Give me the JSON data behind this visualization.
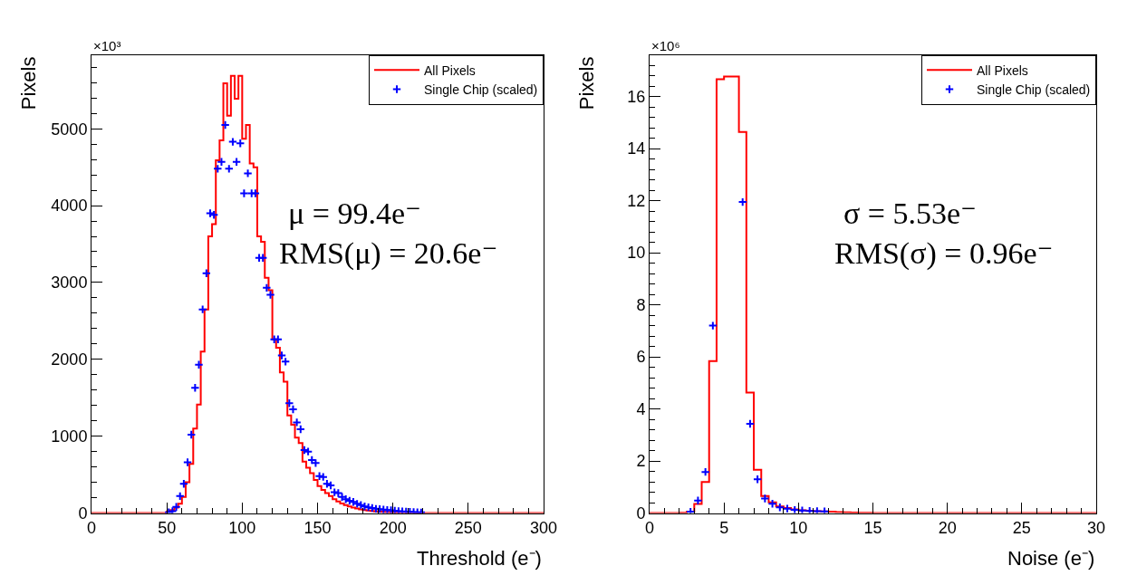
{
  "chart_data": [
    {
      "type": "histogram",
      "xlabel": "Threshold (e⁻)",
      "ylabel": "Pixels",
      "annotations": [
        "×10³",
        "μ = 99.4e⁻",
        "RMS(μ) = 20.6e⁻"
      ],
      "bins": [
        0,
        2.5,
        5,
        7.5,
        10,
        12.5,
        15,
        17.5,
        20,
        22.5,
        25,
        27.5,
        30,
        32.5,
        35,
        37.5,
        40,
        42.5,
        45,
        47.5,
        50,
        52.5,
        55,
        57.5,
        60,
        62.5,
        65,
        67.5,
        70,
        72.5,
        75,
        77.5,
        80,
        82.5,
        85,
        87.5,
        90,
        92.5,
        95,
        97.5,
        100,
        102.5,
        105,
        107.5,
        110,
        112.5,
        115,
        117.5,
        120,
        122.5,
        125,
        127.5,
        130,
        132.5,
        135,
        137.5,
        140,
        142.5,
        145,
        147.5,
        150,
        152.5,
        155,
        157.5,
        160,
        162.5,
        165,
        167.5,
        170,
        172.5,
        175,
        177.5,
        180,
        182.5,
        185,
        187.5,
        190,
        192.5,
        195,
        197.5,
        200,
        202.5,
        205,
        207.5,
        210,
        212.5,
        215,
        217.5,
        220,
        222.5,
        225,
        227.5,
        230,
        232.5,
        235,
        237.5,
        240,
        242.5,
        245,
        247.5,
        250,
        252.5,
        255,
        257.5,
        260,
        262.5,
        265,
        267.5,
        270,
        272.5,
        275,
        277.5,
        280,
        282.5,
        285,
        287.5,
        290,
        292.5,
        295,
        297.5,
        300
      ],
      "series": [
        {
          "name": "All Pixels",
          "color": "#ff0000",
          "values": [
            0,
            0,
            0,
            0,
            0,
            0,
            0,
            0,
            0,
            0,
            0,
            0,
            0,
            0,
            0,
            0,
            0,
            0,
            0,
            0,
            20,
            40,
            70,
            120,
            210,
            400,
            640,
            1100,
            1410,
            2100,
            2650,
            3600,
            3760,
            4590,
            4850,
            5590,
            5170,
            5690,
            5390,
            5690,
            4870,
            5050,
            4550,
            4500,
            3600,
            3530,
            3060,
            2900,
            2260,
            2150,
            1830,
            1710,
            1270,
            1150,
            980,
            910,
            670,
            590,
            520,
            430,
            350,
            300,
            260,
            220,
            180,
            150,
            125,
            105,
            85,
            70,
            58,
            48,
            40,
            33,
            27,
            22,
            18,
            15,
            12,
            10,
            8,
            6,
            5,
            4,
            0,
            0,
            0,
            0,
            0,
            0,
            0,
            0,
            0,
            0,
            0,
            0,
            0,
            0,
            0,
            0,
            0,
            0,
            0,
            0,
            0,
            0,
            0,
            0,
            0,
            0,
            0,
            0,
            0,
            0,
            0,
            0,
            0,
            0,
            0,
            0
          ]
        },
        {
          "name": "Single Chip (scaled)",
          "color": "#0000ff",
          "type": "scatter",
          "x": [
            51.25,
            53.75,
            56.25,
            58.75,
            61.25,
            63.75,
            66.25,
            68.75,
            71.25,
            73.75,
            76.25,
            78.75,
            81.25,
            83.75,
            86.25,
            88.75,
            91.25,
            93.75,
            96.25,
            98.75,
            101.25,
            103.75,
            106.25,
            108.75,
            111.25,
            113.75,
            116.25,
            118.75,
            121.25,
            123.75,
            126.25,
            128.75,
            131.25,
            133.75,
            136.25,
            138.75,
            141.25,
            143.75,
            146.25,
            148.75,
            151.25,
            153.75,
            156.25,
            158.75,
            161.25,
            163.75,
            166.25,
            168.75,
            171.25,
            173.75,
            176.25,
            178.75,
            181.25,
            183.75,
            186.25,
            188.75,
            191.25,
            193.75,
            196.25,
            198.75,
            201.25,
            203.75,
            206.25,
            208.75,
            211.25,
            213.75,
            216.25,
            218.75
          ],
          "values": [
            10,
            25,
            80,
            220,
            380,
            660,
            1020,
            1630,
            1930,
            2650,
            3120,
            3900,
            3880,
            4480,
            4570,
            5050,
            4480,
            4830,
            4570,
            4810,
            4160,
            4420,
            4160,
            4160,
            3320,
            3320,
            2930,
            2840,
            2260,
            2260,
            2050,
            1970,
            1430,
            1350,
            1180,
            1090,
            820,
            800,
            690,
            650,
            480,
            470,
            380,
            360,
            270,
            260,
            210,
            180,
            160,
            145,
            120,
            105,
            85,
            75,
            65,
            55,
            50,
            45,
            40,
            35,
            30,
            25,
            22,
            18,
            15,
            12,
            10,
            8
          ]
        }
      ],
      "xlim": [
        0,
        300
      ],
      "xticks": [
        0,
        50,
        100,
        150,
        200,
        250,
        300
      ],
      "ylim": [
        0,
        5960
      ],
      "yticks": [
        0,
        1000,
        2000,
        3000,
        4000,
        5000
      ],
      "legend": "top right",
      "marker": "cross"
    },
    {
      "type": "histogram",
      "xlabel": "Noise (e⁻)",
      "ylabel": "Pixels",
      "annotations": [
        "×10⁶",
        "σ = 5.53e⁻",
        "RMS(σ) = 0.96e⁻"
      ],
      "bins": [
        0,
        0.5,
        1,
        1.5,
        2,
        2.5,
        3,
        3.5,
        4,
        4.5,
        5,
        5.5,
        6,
        6.5,
        7,
        7.5,
        8,
        8.5,
        9,
        9.5,
        10,
        10.5,
        11,
        11.5,
        12,
        12.5,
        13,
        13.5,
        14,
        14.5,
        15,
        15.5,
        16,
        16.5,
        17,
        17.5,
        18,
        18.5,
        19,
        19.5,
        20,
        20.5,
        21,
        21.5,
        22,
        22.5,
        23,
        23.5,
        24,
        24.5,
        25,
        25.5,
        26,
        26.5,
        27,
        27.5,
        28,
        28.5,
        29,
        29.5,
        30
      ],
      "series": [
        {
          "name": "All Pixels",
          "color": "#ff0000",
          "values": [
            0,
            0,
            0,
            0,
            0.01,
            0.05,
            0.35,
            1.19,
            5.84,
            16.67,
            16.77,
            16.77,
            14.64,
            4.63,
            1.66,
            0.65,
            0.41,
            0.25,
            0.19,
            0.14,
            0.11,
            0.09,
            0.07,
            0.06,
            0.05,
            0.04,
            0.03,
            0.02,
            0.01,
            0.01,
            0,
            0,
            0,
            0,
            0,
            0,
            0,
            0,
            0,
            0,
            0,
            0,
            0,
            0,
            0,
            0,
            0,
            0,
            0,
            0,
            0,
            0,
            0,
            0,
            0,
            0,
            0,
            0,
            0,
            0
          ]
        },
        {
          "name": "Single Chip (scaled)",
          "color": "#0000ff",
          "type": "scatter",
          "x": [
            2.75,
            3.25,
            3.75,
            4.25,
            4.75,
            5.25,
            5.75,
            6.25,
            6.75,
            7.25,
            7.75,
            8.25,
            8.75,
            9.25,
            9.75,
            10.25,
            10.75,
            11.25,
            11.75
          ],
          "values": [
            0.05,
            0.48,
            1.58,
            7.2,
            null,
            null,
            null,
            11.95,
            3.43,
            1.3,
            0.56,
            0.36,
            0.22,
            0.17,
            0.12,
            0.1,
            0.08,
            0.07,
            0.06
          ]
        }
      ],
      "xlim": [
        0,
        30
      ],
      "xticks": [
        0,
        5,
        10,
        15,
        20,
        25,
        30
      ],
      "ylim": [
        0,
        17.6
      ],
      "yticks": [
        0,
        2,
        4,
        6,
        8,
        10,
        12,
        14,
        16
      ],
      "legend": "top right",
      "marker": "cross"
    }
  ]
}
